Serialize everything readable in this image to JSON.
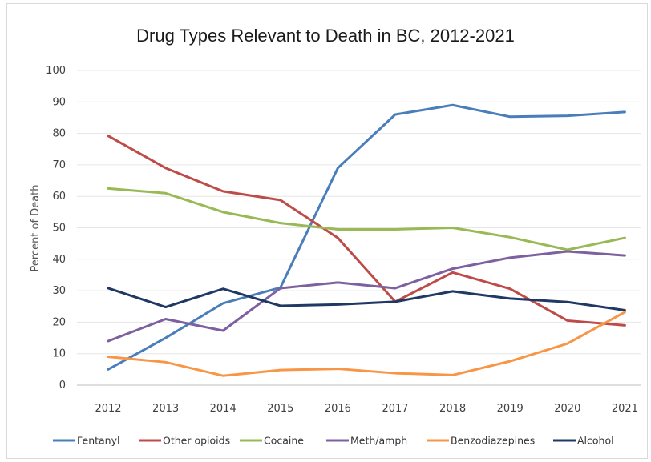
{
  "chart_data": {
    "type": "line",
    "title": "Drug Types Relevant to Death in BC, 2012-2021",
    "ylabel": "Percent of Death",
    "xlabel": "",
    "categories": [
      "2012",
      "2013",
      "2014",
      "2015",
      "2016",
      "2017",
      "2018",
      "2019",
      "2020",
      "2021"
    ],
    "yticks": [
      "0",
      "10",
      "20",
      "30",
      "40",
      "50",
      "60",
      "70",
      "80",
      "90",
      "100"
    ],
    "ylim": [
      0,
      100
    ],
    "grid": true,
    "legend_position": "bottom",
    "series": [
      {
        "name": "Fentanyl",
        "color": "#4a7ebb",
        "values": [
          5,
          15,
          26,
          31,
          69,
          86,
          89,
          85.3,
          85.6,
          86.8
        ]
      },
      {
        "name": "Other opioids",
        "color": "#be4b48",
        "values": [
          79.2,
          69,
          61.6,
          58.8,
          46.8,
          26.5,
          35.8,
          30.6,
          20.5,
          19
        ]
      },
      {
        "name": "Cocaine",
        "color": "#98b954",
        "values": [
          62.5,
          61,
          55,
          51.5,
          49.5,
          49.5,
          50,
          47,
          43,
          46.8
        ]
      },
      {
        "name": "Meth/amph",
        "color": "#7d60a0",
        "values": [
          14,
          21,
          17.3,
          30.8,
          32.6,
          30.8,
          37,
          40.5,
          42.5,
          41.2
        ]
      },
      {
        "name": "Benzodiazepines",
        "color": "#f79646",
        "values": [
          9,
          7.3,
          3,
          4.8,
          5.2,
          3.8,
          3.2,
          7.6,
          13.2,
          23.2
        ]
      },
      {
        "name": "Alcohol",
        "color": "#1f3864",
        "values": [
          30.8,
          24.8,
          30.6,
          25.2,
          25.6,
          26.5,
          29.8,
          27.5,
          26.4,
          23.8
        ]
      }
    ]
  }
}
